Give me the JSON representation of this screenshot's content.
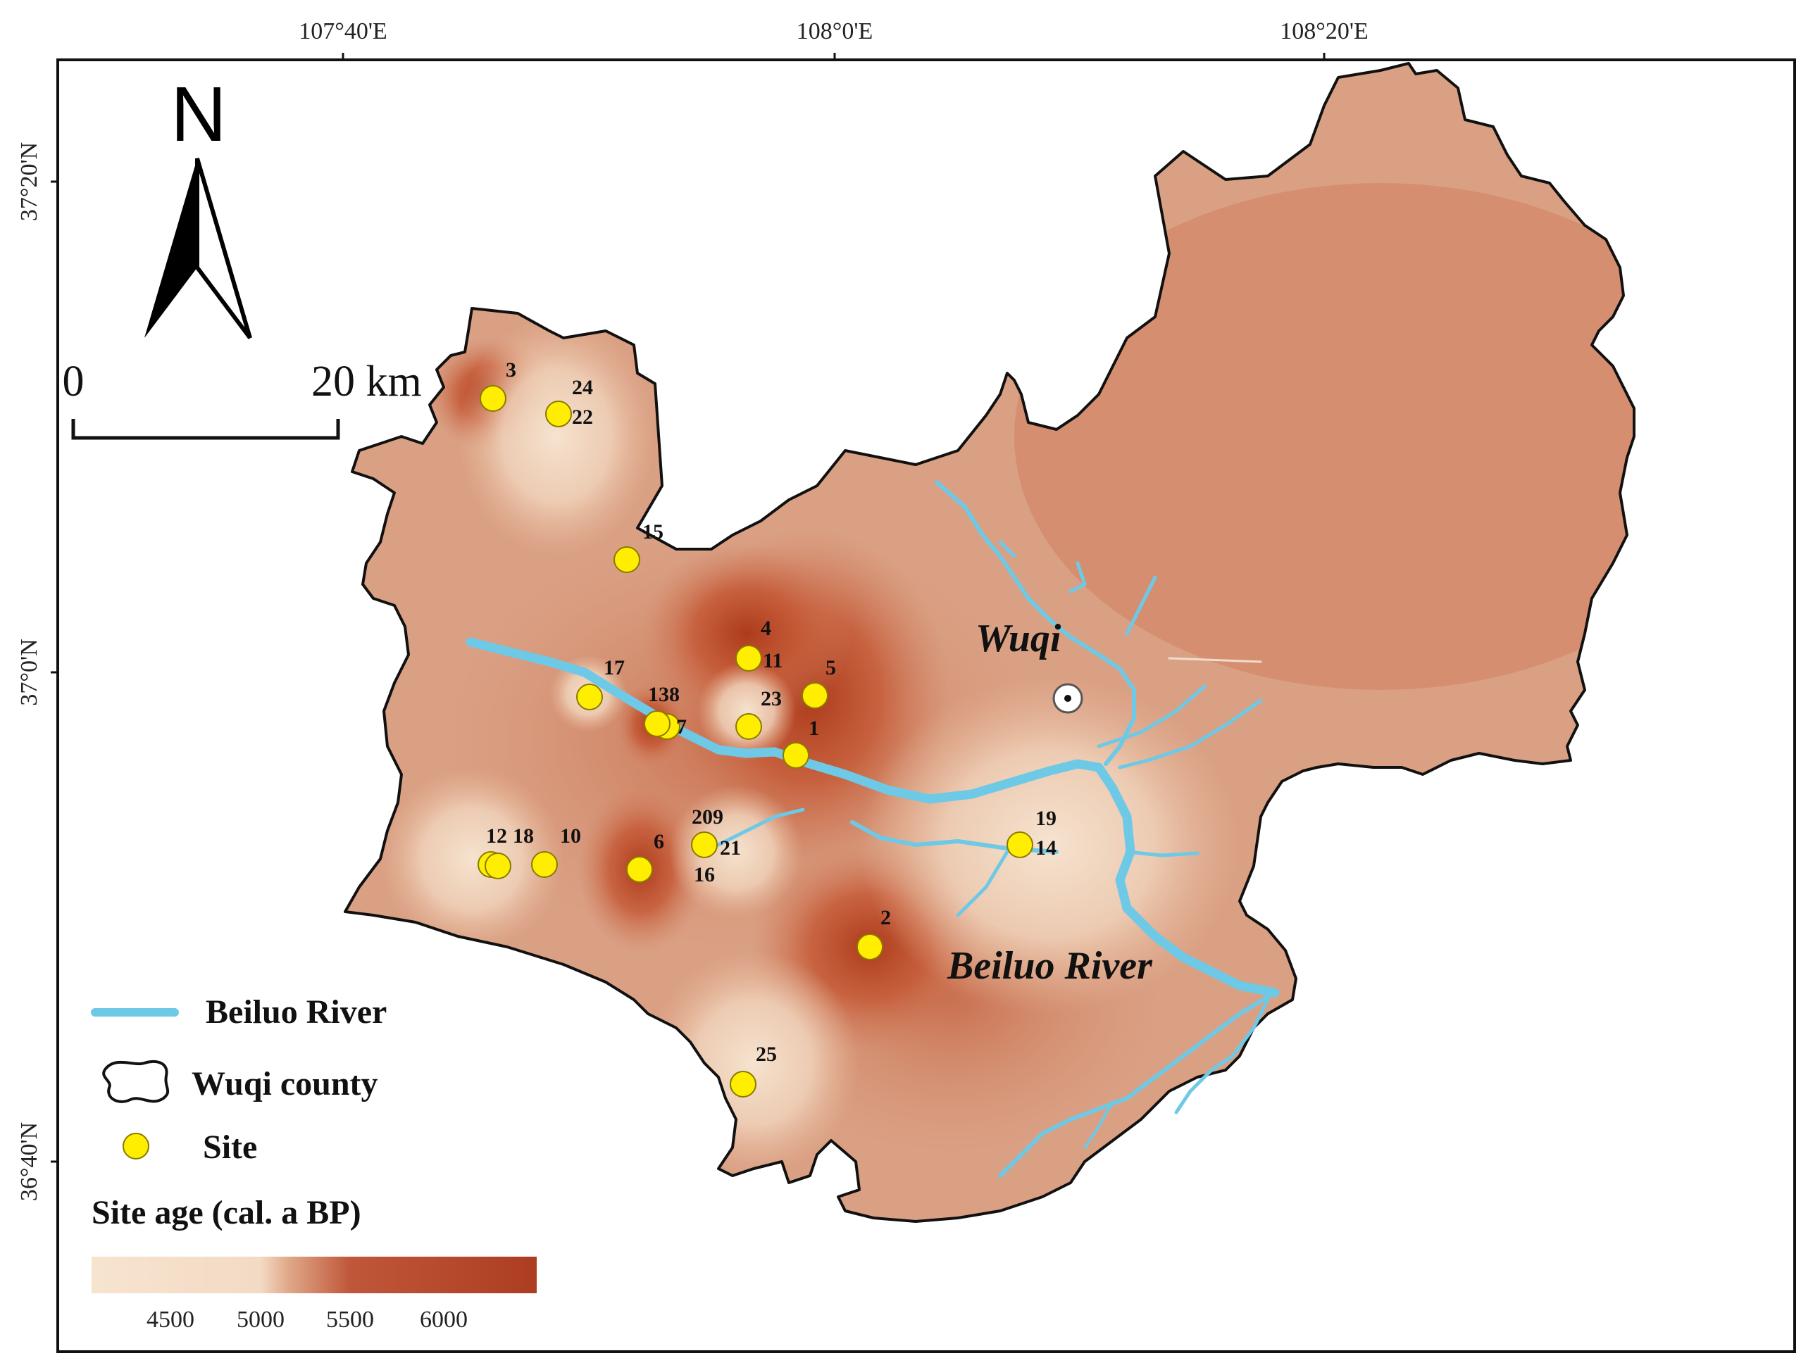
{
  "coordinates": {
    "longitude_labels": [
      "107°40'E",
      "108°0'E",
      "108°20'E"
    ],
    "latitude_labels": [
      "37°20'N",
      "37°0'N",
      "36°40'N"
    ]
  },
  "north_arrow": {
    "label": "N",
    "icon": "north-arrow-icon"
  },
  "scale_bar": {
    "start_label": "0",
    "end_label": "20 km"
  },
  "place_labels": {
    "town": "Wuqi",
    "river": "Beiluo River"
  },
  "legend": {
    "river_label": "Beiluo River",
    "county_label": "Wuqi county",
    "site_label": "Site",
    "colorbar_title": "Site age (cal. a BP)",
    "colorbar_ticks": [
      "4500",
      "5000",
      "5500",
      "6000"
    ]
  },
  "colors": {
    "county_fill": "#d99a7c",
    "light": "#f3dcc6",
    "dark": "#b24524",
    "river": "#6ec9e6",
    "site": "#ffee00",
    "border": "#111111"
  },
  "sites": [
    {
      "label": "3"
    },
    {
      "label": "24"
    },
    {
      "label": "22"
    },
    {
      "label": "15"
    },
    {
      "label": "4"
    },
    {
      "label": "11"
    },
    {
      "label": "5"
    },
    {
      "label": "17"
    },
    {
      "label": "138"
    },
    {
      "label": "7"
    },
    {
      "label": "23"
    },
    {
      "label": "1"
    },
    {
      "label": "209"
    },
    {
      "label": "21"
    },
    {
      "label": "16"
    },
    {
      "label": "12"
    },
    {
      "label": "18"
    },
    {
      "label": "10"
    },
    {
      "label": "6"
    },
    {
      "label": "19"
    },
    {
      "label": "14"
    },
    {
      "label": "2"
    },
    {
      "label": "25"
    }
  ]
}
